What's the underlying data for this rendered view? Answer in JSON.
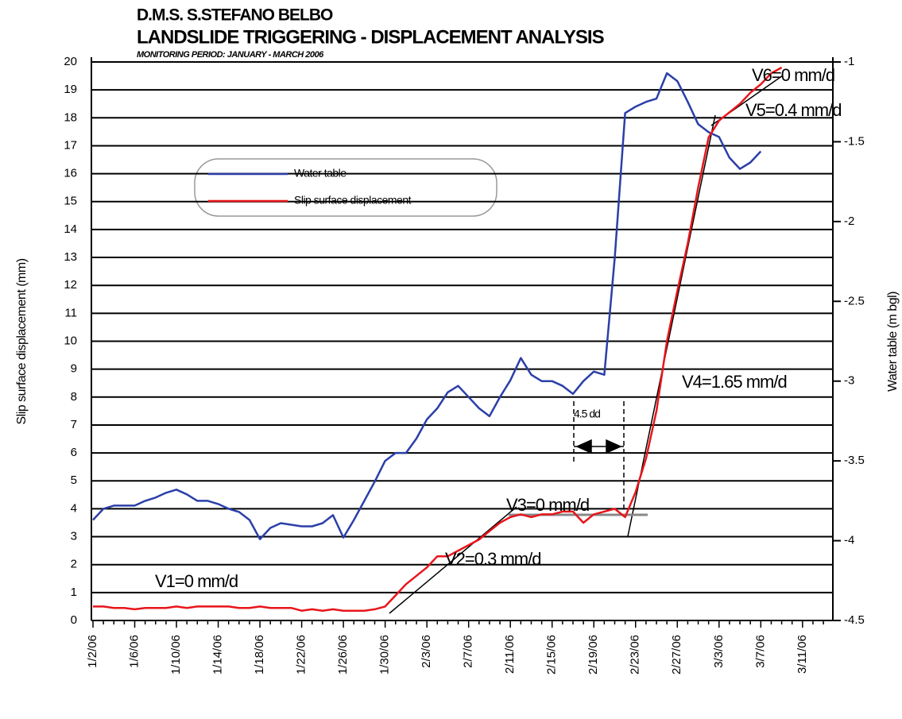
{
  "chart_data": {
    "type": "line",
    "title": "D.M.S. S.STEFANO BELBO",
    "subtitle": "LANDSLIDE TRIGGERING - DISPLACEMENT ANALYSIS",
    "period": "MONITORING PERIOD: JANUARY - MARCH 2006",
    "y_label": "Slip surface displacement (mm)",
    "y2_label": "Water table (m bgl)",
    "categories": [
      "1/2/06",
      null,
      null,
      null,
      "1/6/06",
      null,
      null,
      null,
      "1/10/06",
      null,
      null,
      null,
      "1/14/06",
      null,
      null,
      null,
      "1/18/06",
      null,
      null,
      null,
      "1/22/06",
      null,
      null,
      null,
      "1/26/06",
      null,
      null,
      null,
      "1/30/06",
      null,
      null,
      null,
      "2/3/06",
      null,
      null,
      null,
      "2/7/06",
      null,
      null,
      null,
      "2/11/06",
      null,
      null,
      null,
      "2/15/06",
      null,
      null,
      null,
      "2/19/06",
      null,
      null,
      null,
      "2/23/06",
      null,
      null,
      null,
      "2/27/06",
      null,
      null,
      null,
      "3/3/06",
      null,
      null,
      null,
      "3/7/06",
      null,
      null,
      null,
      "3/11/06",
      null,
      null
    ],
    "ylim": [
      0,
      20
    ],
    "yticks": [
      0,
      1,
      2,
      3,
      4,
      5,
      6,
      7,
      8,
      9,
      10,
      11,
      12,
      13,
      14,
      15,
      16,
      17,
      18,
      19,
      20
    ],
    "y2lim": [
      -4.5,
      -1
    ],
    "y2ticks": [
      -4.5,
      -4,
      -3.5,
      -3,
      -2.5,
      -2,
      -1.5,
      -1
    ],
    "grid": true,
    "series": [
      {
        "name": "Water table",
        "color": "#2b3fa8",
        "axis": "y2",
        "values": [
          -3.87,
          -3.8,
          -3.78,
          -3.78,
          -3.78,
          -3.75,
          -3.73,
          -3.7,
          -3.68,
          -3.71,
          -3.75,
          -3.75,
          -3.77,
          -3.8,
          -3.82,
          -3.87,
          -3.99,
          -3.92,
          -3.89,
          -3.9,
          -3.91,
          -3.91,
          -3.89,
          -3.84,
          -3.98,
          -3.87,
          -3.75,
          -3.63,
          -3.5,
          -3.45,
          -3.45,
          -3.36,
          -3.24,
          -3.17,
          -3.07,
          -3.03,
          -3.1,
          -3.17,
          -3.22,
          -3.1,
          -2.995,
          -2.855,
          -2.96,
          -3.0,
          -3.0,
          -3.03,
          -3.08,
          -3.0,
          -2.94,
          -2.96,
          -2.23,
          -1.32,
          -1.28,
          -1.25,
          -1.23,
          -1.07,
          -1.12,
          -1.25,
          -1.39,
          -1.44,
          -1.47,
          -1.6,
          -1.67,
          -1.63,
          -1.56,
          null,
          null,
          null,
          null,
          null,
          null
        ]
      },
      {
        "name": "Slip surface displacement",
        "color": "#e8151b",
        "values": [
          0.5,
          0.5,
          0.45,
          0.45,
          0.4,
          0.45,
          0.45,
          0.45,
          0.5,
          0.45,
          0.5,
          0.5,
          0.5,
          0.5,
          0.45,
          0.45,
          0.5,
          0.45,
          0.45,
          0.45,
          0.35,
          0.4,
          0.35,
          0.4,
          0.35,
          0.35,
          0.35,
          0.4,
          0.5,
          0.9,
          1.3,
          1.6,
          1.9,
          2.3,
          2.3,
          2.5,
          2.7,
          2.9,
          3.2,
          3.5,
          3.7,
          3.8,
          3.7,
          3.8,
          3.8,
          3.9,
          3.9,
          3.5,
          3.8,
          3.9,
          4.0,
          3.7,
          4.6,
          5.8,
          7.5,
          10.0,
          11.8,
          13.5,
          15.5,
          17.3,
          17.9,
          18.2,
          18.5,
          18.9,
          19.2,
          19.6,
          19.8,
          null,
          null,
          null,
          null
        ]
      }
    ],
    "annotations": [
      "V1=0 mm/d",
      "V2=0.3 mm/d",
      "V3=0 mm/d",
      "V4=1.65 mm/d",
      "V5=0.4 mm/d",
      "V6=0 mm/d",
      "4.5 dd"
    ]
  }
}
